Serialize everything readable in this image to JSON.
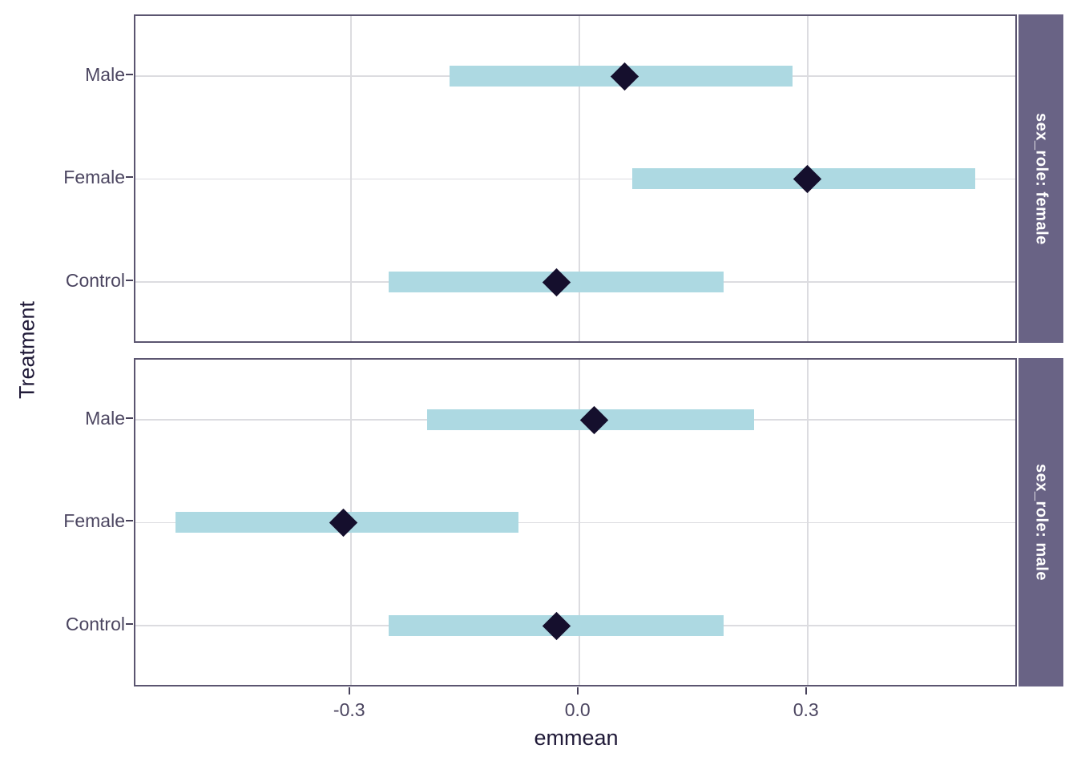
{
  "figure": {
    "y_axis_title": "Treatment",
    "x_axis_title": "emmean",
    "colors": {
      "bar_fill": "#ADD9E2",
      "point_fill": "#150F2D",
      "strip_bg": "#696385",
      "strip_text": "#FFFFFF",
      "panel_border": "#5B5570",
      "gridline": "#DCDCE0",
      "tick_label": "#4B4560",
      "axis_title": "#201A38",
      "tick_mark": "#47415A"
    }
  },
  "chart_data": {
    "type": "pointrange",
    "subtype": "horizontal interval plot (estimated marginal means with confidence intervals)",
    "title": "",
    "xlabel": "emmean",
    "ylabel": "Treatment",
    "grid": "major-only",
    "legend": "none",
    "x_axis": {
      "ticks": [
        -0.3,
        0.0,
        0.3
      ],
      "tick_labels": [
        "-0.3",
        "0.0",
        "0.3"
      ],
      "range": [
        -0.585,
        0.575
      ]
    },
    "y_axis": {
      "categories_top_to_bottom": [
        "Male",
        "Female",
        "Control"
      ]
    },
    "facets": [
      {
        "label": "sex_role: female",
        "rows": [
          {
            "category": "Male",
            "emmean": 0.06,
            "lower": -0.17,
            "upper": 0.28
          },
          {
            "category": "Female",
            "emmean": 0.3,
            "lower": 0.07,
            "upper": 0.52
          },
          {
            "category": "Control",
            "emmean": -0.03,
            "lower": -0.25,
            "upper": 0.19
          }
        ]
      },
      {
        "label": "sex_role: male",
        "rows": [
          {
            "category": "Male",
            "emmean": 0.02,
            "lower": -0.2,
            "upper": 0.23
          },
          {
            "category": "Female",
            "emmean": -0.31,
            "lower": -0.53,
            "upper": -0.08
          },
          {
            "category": "Control",
            "emmean": -0.03,
            "lower": -0.25,
            "upper": 0.19
          }
        ]
      }
    ]
  }
}
